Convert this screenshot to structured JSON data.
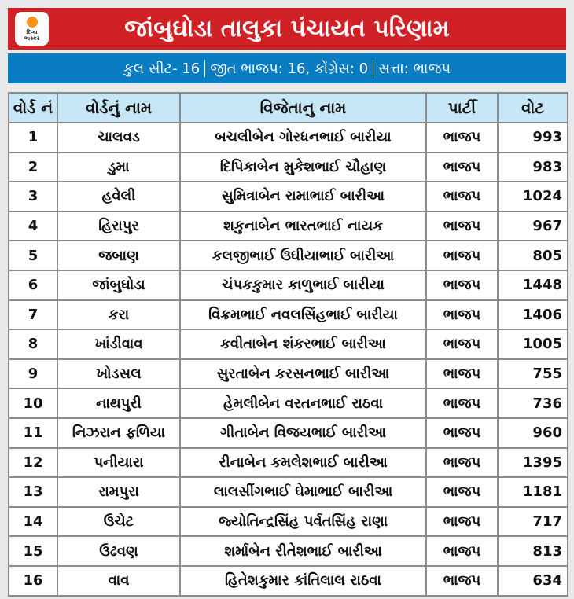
{
  "header": {
    "title": "જાંબુઘોડા તાલુકા પંચાયત પરિણામ",
    "logo_text": [
      "દિવ્ય",
      "ભાસ્કર"
    ]
  },
  "summary": {
    "parts": [
      "કુલ સીટ- 16",
      "જીત ભાજપ: 16, કોંગ્રેસ: 0",
      "સત્તા: ભાજપ"
    ]
  },
  "colors": {
    "banner": "#d02127",
    "summary_bar": "#0a7dc2",
    "table_header": "#c7e7f6"
  },
  "table": {
    "headers": [
      "વોર્ડ નં",
      "વોર્ડનું નામ",
      "વિજેતાનુ નામ",
      "પાર્ટી",
      "વોટ"
    ],
    "rows": [
      [
        "1",
        "ચાલવડ",
        "બચલીબેન ગોરધનભાઈ બારીયા",
        "ભાજપ",
        "993"
      ],
      [
        "2",
        "ડુમા",
        "દિપિકાબેન મુકેશભાઈ ચૌહાણ",
        "ભાજપ",
        "983"
      ],
      [
        "3",
        "હવેલી",
        "સુમિત્રાબેન રામાભાઈ બારીઆ",
        "ભાજપ",
        "1024"
      ],
      [
        "4",
        "હિરાપુર",
        "શકુનાબેન ભારતભાઈ નાયક",
        "ભાજપ",
        "967"
      ],
      [
        "5",
        "જબાણ",
        "કલજીભાઈ ઉઘીયાભાઈ બારીઆ",
        "ભાજપ",
        "805"
      ],
      [
        "6",
        "જાંબુઘોડા",
        "ચંપકકુમાર કાળુભાઈ બારીયા",
        "ભાજપ",
        "1448"
      ],
      [
        "7",
        "કરા",
        "વિક્રમભાઈ નવલસિંહભાઈ બારીયા",
        "ભાજપ",
        "1406"
      ],
      [
        "8",
        "ખાંડીવાવ",
        "કવીતાબેન શંકરભાઈ બારીઆ",
        "ભાજપ",
        "1005"
      ],
      [
        "9",
        "ખોડસલ",
        "સુરતાબેન કરસનભાઈ બારીઆ",
        "ભાજપ",
        "755"
      ],
      [
        "10",
        "નાથપુરી",
        "હેમલીબેન વરતનભાઈ રાઠવા",
        "ભાજપ",
        "736"
      ],
      [
        "11",
        "નિઝરાન ફળિયા",
        "ગીતાબેન વિજયભાઈ બારીઆ",
        "ભાજપ",
        "960"
      ],
      [
        "12",
        "પનીયારા",
        "રીનાબેન કમલેશભાઈ બારીઆ",
        "ભાજપ",
        "1395"
      ],
      [
        "13",
        "રામપુરા",
        "લાલસીંગભાઈ ઘેમાભાઈ બારીઆ",
        "ભાજપ",
        "1181"
      ],
      [
        "14",
        "ઉચેટ",
        "જ્યોતિન્દ્રસિંહ પર્વતસિંહ રાણા",
        "ભાજપ",
        "717"
      ],
      [
        "15",
        "ઉઢવણ",
        "શર્માબેન રીતેશભાઈ બારીઆ",
        "ભાજપ",
        "813"
      ],
      [
        "16",
        "વાવ",
        "હિતેશકુમાર કાંતિલાલ રાઠવા",
        "ભાજપ",
        "634"
      ]
    ]
  }
}
